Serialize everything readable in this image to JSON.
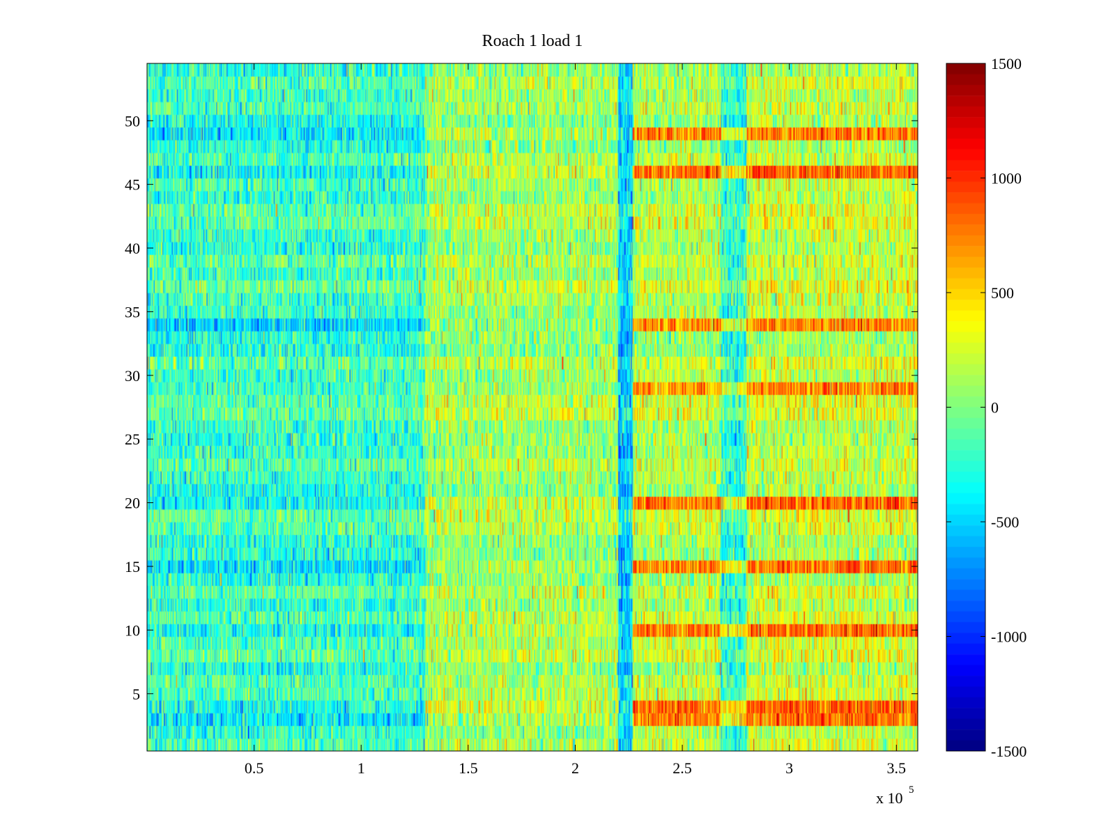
{
  "chart_data": {
    "type": "heatmap",
    "title": "Roach 1 load 1",
    "xlabel": "",
    "ylabel": "",
    "x_multiplier_label": "x 10",
    "x_multiplier_exponent": "5",
    "xlim": [
      0,
      3.6
    ],
    "ylim": [
      0.5,
      54.5
    ],
    "rows": 54,
    "x_ticks": [
      {
        "value": 0.5,
        "label": "0.5"
      },
      {
        "value": 1,
        "label": "1"
      },
      {
        "value": 1.5,
        "label": "1.5"
      },
      {
        "value": 2,
        "label": "2"
      },
      {
        "value": 2.5,
        "label": "2.5"
      },
      {
        "value": 3,
        "label": "3"
      },
      {
        "value": 3.5,
        "label": "3.5"
      }
    ],
    "y_ticks": [
      {
        "value": 5,
        "label": "5"
      },
      {
        "value": 10,
        "label": "10"
      },
      {
        "value": 15,
        "label": "15"
      },
      {
        "value": 20,
        "label": "20"
      },
      {
        "value": 25,
        "label": "25"
      },
      {
        "value": 30,
        "label": "30"
      },
      {
        "value": 35,
        "label": "35"
      },
      {
        "value": 40,
        "label": "40"
      },
      {
        "value": 45,
        "label": "45"
      },
      {
        "value": 50,
        "label": "50"
      }
    ],
    "colorbar": {
      "colormap": "jet",
      "clim": [
        -1500,
        1500
      ],
      "ticks": [
        {
          "value": 1500,
          "label": "1500"
        },
        {
          "value": 1000,
          "label": "1000"
        },
        {
          "value": 500,
          "label": "500"
        },
        {
          "value": 0,
          "label": "0"
        },
        {
          "value": -500,
          "label": "-500"
        },
        {
          "value": -1000,
          "label": "-1000"
        },
        {
          "value": -1500,
          "label": "-1500"
        }
      ]
    },
    "segments": [
      {
        "x_range": [
          0,
          1.3
        ],
        "base_mean": -200
      },
      {
        "x_range": [
          1.3,
          2.2
        ],
        "base_mean": 100
      },
      {
        "x_range": [
          2.2,
          2.27
        ],
        "base_mean": -350
      },
      {
        "x_range": [
          2.27,
          2.68
        ],
        "base_mean": 150
      },
      {
        "x_range": [
          2.68,
          2.8
        ],
        "base_mean": -250
      },
      {
        "x_range": [
          2.8,
          3.6
        ],
        "base_mean": 200
      }
    ],
    "hot_rows_after_2.27": [
      3,
      4,
      10,
      15,
      20,
      29,
      34,
      46,
      49
    ],
    "cold_rows_before_1.3": [
      3,
      4,
      10,
      15,
      20,
      34,
      46,
      49
    ],
    "noise_std": 220
  }
}
